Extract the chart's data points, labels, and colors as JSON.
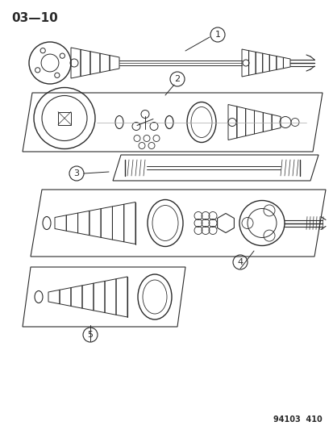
{
  "bg_color": "#ffffff",
  "line_color": "#2a2a2a",
  "title_text": "03—10",
  "footer_text": "94103  410",
  "title_fontsize": 11,
  "footer_fontsize": 7,
  "callout_fontsize": 8
}
